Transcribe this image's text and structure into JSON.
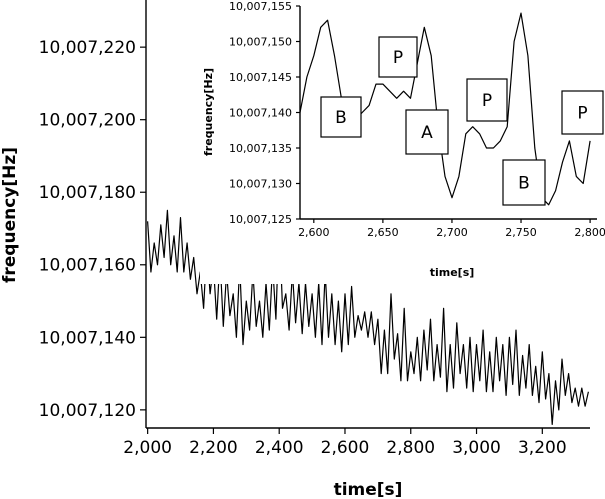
{
  "chart_data": [
    {
      "type": "line",
      "xlabel": "time[s]",
      "ylabel": "frequency[Hz]",
      "xlim": [
        1995,
        3345
      ],
      "ylim": [
        10007115,
        10007233
      ],
      "xticks": [
        2000,
        2200,
        2400,
        2600,
        2800,
        3000,
        3200
      ],
      "xtick_labels": [
        "2,000",
        "2,200",
        "2,400",
        "2,600",
        "2,800",
        "3,000",
        "3,200"
      ],
      "yticks": [
        10007120,
        10007140,
        10007160,
        10007180,
        10007200,
        10007220
      ],
      "ytick_labels": [
        "10,007,120",
        "10,007,140",
        "10,007,160",
        "10,007,180",
        "10,007,200",
        "10,007,220"
      ],
      "series": [
        {
          "x": [
            2000,
            2010,
            2020,
            2030,
            2040,
            2050,
            2060,
            2070,
            2080,
            2090,
            2100,
            2110,
            2120,
            2130,
            2140,
            2150,
            2160,
            2170,
            2180,
            2190,
            2200,
            2210,
            2220,
            2230,
            2240,
            2250,
            2260,
            2270,
            2280,
            2290,
            2300,
            2310,
            2320,
            2330,
            2340,
            2350,
            2360,
            2370,
            2380,
            2390,
            2400,
            2410,
            2420,
            2430,
            2440,
            2450,
            2460,
            2470,
            2480,
            2490,
            2500,
            2510,
            2520,
            2530,
            2540,
            2550,
            2560,
            2570,
            2580,
            2590,
            2600,
            2610,
            2620,
            2630,
            2640,
            2650,
            2660,
            2670,
            2680,
            2690,
            2700,
            2710,
            2720,
            2730,
            2740,
            2750,
            2760,
            2770,
            2780,
            2790,
            2800,
            2810,
            2820,
            2830,
            2840,
            2850,
            2860,
            2870,
            2880,
            2890,
            2900,
            2910,
            2920,
            2930,
            2940,
            2950,
            2960,
            2970,
            2980,
            2990,
            3000,
            3010,
            3020,
            3030,
            3040,
            3050,
            3060,
            3070,
            3080,
            3090,
            3100,
            3110,
            3120,
            3130,
            3140,
            3150,
            3160,
            3170,
            3180,
            3190,
            3200,
            3210,
            3220,
            3230,
            3240,
            3250,
            3260,
            3270,
            3280,
            3290,
            3300,
            3310,
            3320,
            3330,
            3340
          ],
          "y": [
            10007172,
            10007158,
            10007166,
            10007160,
            10007171,
            10007162,
            10007175,
            10007160,
            10007168,
            10007158,
            10007173,
            10007158,
            10007166,
            10007156,
            10007162,
            10007152,
            10007158,
            10007148,
            10007165,
            10007152,
            10007160,
            10007145,
            10007162,
            10007143,
            10007158,
            10007146,
            10007152,
            10007140,
            10007160,
            10007138,
            10007150,
            10007142,
            10007158,
            10007143,
            10007150,
            10007140,
            10007155,
            10007142,
            10007160,
            10007145,
            10007172,
            10007148,
            10007152,
            10007142,
            10007158,
            10007144,
            10007155,
            10007141,
            10007155,
            10007143,
            10007152,
            10007140,
            10007155,
            10007138,
            10007158,
            10007140,
            10007152,
            10007138,
            10007150,
            10007136,
            10007152,
            10007138,
            10007154,
            10007140,
            10007146,
            10007142,
            10007147,
            10007140,
            10007147,
            10007138,
            10007145,
            10007130,
            10007142,
            10007130,
            10007152,
            10007134,
            10007141,
            10007128,
            10007148,
            10007128,
            10007136,
            10007130,
            10007140,
            10007128,
            10007142,
            10007131,
            10007145,
            10007128,
            10007138,
            10007129,
            10007148,
            10007125,
            10007138,
            10007126,
            10007144,
            10007130,
            10007138,
            10007126,
            10007140,
            10007125,
            10007138,
            10007128,
            10007142,
            10007125,
            10007136,
            10007125,
            10007140,
            10007128,
            10007138,
            10007124,
            10007140,
            10007127,
            10007142,
            10007124,
            10007135,
            10007126,
            10007138,
            10007124,
            10007132,
            10007122,
            10007136,
            10007123,
            10007130,
            10007116,
            10007128,
            10007120,
            10007134,
            10007124,
            10007130,
            10007122,
            10007126,
            10007121,
            10007126,
            10007121,
            10007125
          ]
        }
      ],
      "grid": false,
      "legend": "none"
    },
    {
      "type": "line",
      "xlabel": "time[s]",
      "ylabel": "frequency[Hz]",
      "xlim": [
        2590,
        2805
      ],
      "ylim": [
        10007125,
        10007155
      ],
      "xticks": [
        2600,
        2650,
        2700,
        2750,
        2800
      ],
      "xtick_labels": [
        "2,600",
        "2,650",
        "2,700",
        "2,750",
        "2,800"
      ],
      "yticks": [
        10007125,
        10007130,
        10007135,
        10007140,
        10007145,
        10007150,
        10007155
      ],
      "ytick_labels": [
        "10,007,125",
        "10,007,130",
        "10,007,135",
        "10,007,140",
        "10,007,145",
        "10,007,150",
        "10,007,155"
      ],
      "series": [
        {
          "x": [
            2590,
            2595,
            2600,
            2605,
            2610,
            2615,
            2620,
            2625,
            2630,
            2635,
            2640,
            2645,
            2650,
            2655,
            2660,
            2665,
            2670,
            2675,
            2680,
            2685,
            2690,
            2695,
            2700,
            2705,
            2710,
            2715,
            2720,
            2725,
            2730,
            2735,
            2740,
            2745,
            2750,
            2755,
            2760,
            2765,
            2770,
            2775,
            2780,
            2785,
            2790,
            2795,
            2800
          ],
          "y": [
            10007140,
            10007145,
            10007148,
            10007152,
            10007153,
            10007148,
            10007142,
            10007140,
            10007139,
            10007140,
            10007141,
            10007144,
            10007144,
            10007143,
            10007142,
            10007143,
            10007142,
            10007147,
            10007152,
            10007148,
            10007138,
            10007131,
            10007128,
            10007131,
            10007137,
            10007138,
            10007137,
            10007135,
            10007135,
            10007136,
            10007138,
            10007150,
            10007154,
            10007148,
            10007135,
            10007128,
            10007127,
            10007129,
            10007133,
            10007136,
            10007131,
            10007130,
            10007136
          ]
        }
      ],
      "annotations": [
        "B",
        "P",
        "A",
        "P",
        "B",
        "P"
      ],
      "grid": false,
      "legend": "none"
    }
  ]
}
